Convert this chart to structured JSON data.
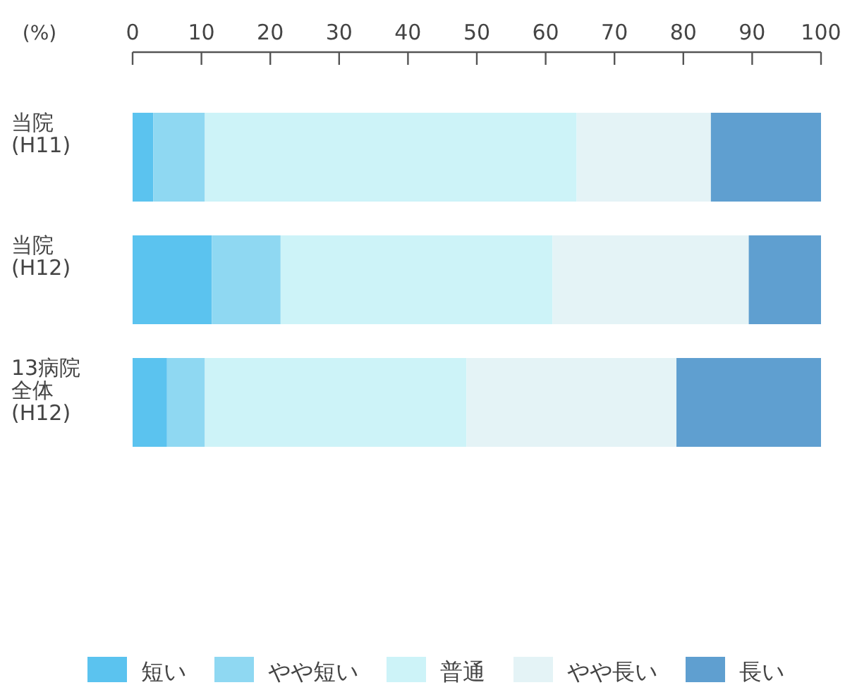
{
  "chart_data": {
    "type": "bar",
    "orientation": "horizontal",
    "stacked": true,
    "xlabel": "(%)",
    "categories": [
      "当院(H11)",
      "当院(H12)",
      "13病院全体(H12)"
    ],
    "xlim": [
      0,
      100
    ],
    "xticks": [
      0,
      10,
      20,
      30,
      40,
      50,
      60,
      70,
      80,
      90,
      100
    ],
    "legend": "bottom",
    "grid": false,
    "series": [
      {
        "name": "短い",
        "color": "#5bc3ef",
        "values": [
          3,
          11.5,
          5
        ]
      },
      {
        "name": "やや短い",
        "color": "#8fd8f2",
        "values": [
          7.5,
          10,
          5.5
        ]
      },
      {
        "name": "普通",
        "color": "#cdf3f8",
        "values": [
          54,
          39.5,
          38
        ]
      },
      {
        "name": "やや長い",
        "color": "#e4f3f6",
        "values": [
          19.5,
          28.5,
          30.5
        ]
      },
      {
        "name": "長い",
        "color": "#5f9fd0",
        "values": [
          16,
          10.5,
          21
        ]
      }
    ]
  }
}
